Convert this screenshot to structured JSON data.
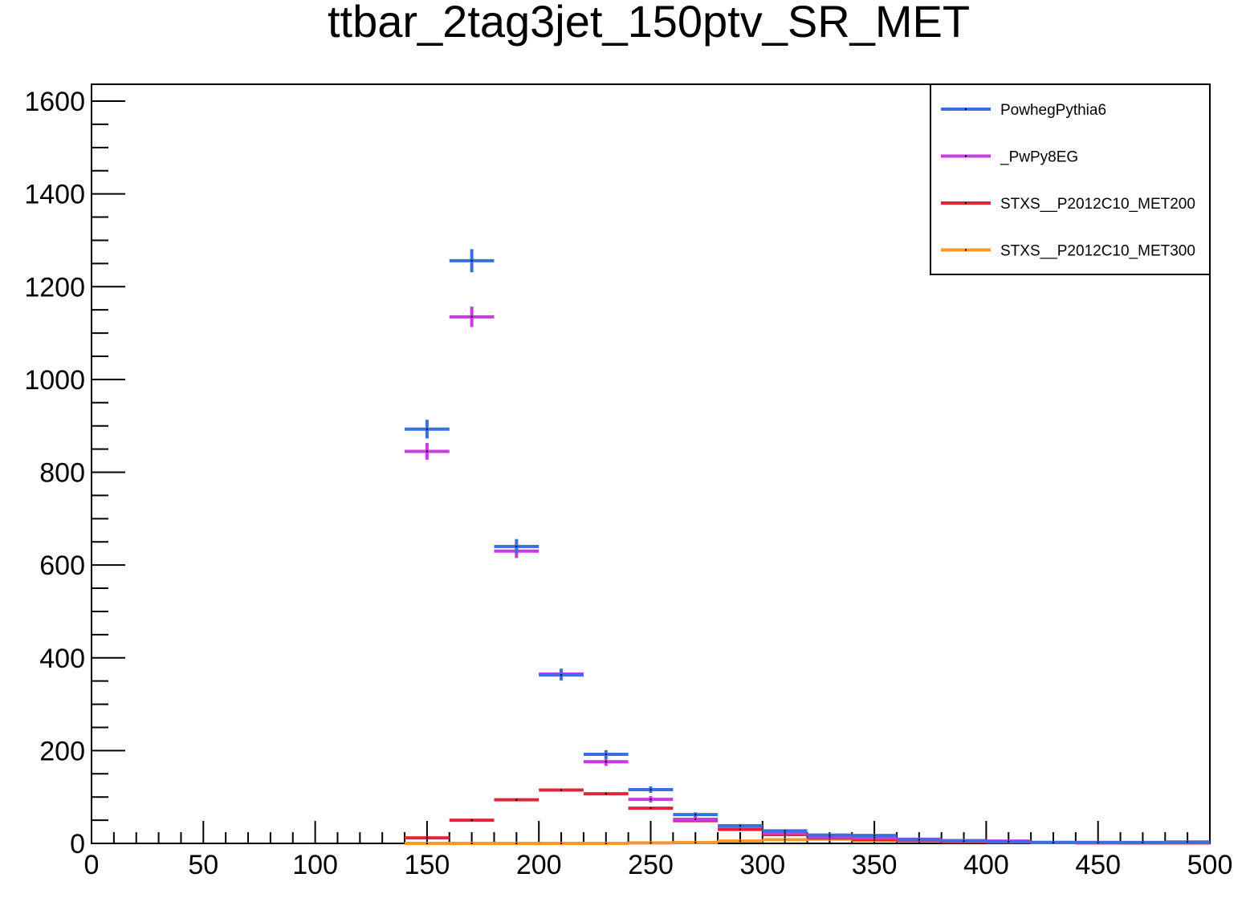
{
  "chart_data": {
    "type": "scatter",
    "title": "ttbar_2tag3jet_150ptv_SR_MET",
    "xlabel": "",
    "ylabel": "",
    "xlim": [
      0,
      500
    ],
    "ylim": [
      0,
      1650
    ],
    "x_ticks": [
      0,
      50,
      100,
      150,
      200,
      250,
      300,
      350,
      400,
      450,
      500
    ],
    "y_ticks": [
      0,
      200,
      400,
      600,
      800,
      1000,
      1200,
      1400,
      1600
    ],
    "grid": false,
    "legend_position": "top-right",
    "bin_width": 20,
    "series": [
      {
        "name": "PowhegPythia6",
        "color": "#3b6fe0",
        "points": [
          {
            "x": 150,
            "y": 893,
            "err": 20
          },
          {
            "x": 170,
            "y": 1256,
            "err": 25
          },
          {
            "x": 190,
            "y": 640,
            "err": 16
          },
          {
            "x": 210,
            "y": 363,
            "err": 12
          },
          {
            "x": 230,
            "y": 192,
            "err": 9
          },
          {
            "x": 250,
            "y": 116,
            "err": 7
          },
          {
            "x": 270,
            "y": 62,
            "err": 5
          },
          {
            "x": 290,
            "y": 38,
            "err": 4
          },
          {
            "x": 310,
            "y": 27,
            "err": 3
          },
          {
            "x": 330,
            "y": 18,
            "err": 3
          },
          {
            "x": 350,
            "y": 17,
            "err": 3
          },
          {
            "x": 370,
            "y": 8,
            "err": 2
          },
          {
            "x": 390,
            "y": 5,
            "err": 2
          },
          {
            "x": 410,
            "y": 4,
            "err": 1
          },
          {
            "x": 430,
            "y": 2,
            "err": 1
          },
          {
            "x": 450,
            "y": 2,
            "err": 1
          },
          {
            "x": 470,
            "y": 2,
            "err": 1
          },
          {
            "x": 490,
            "y": 3,
            "err": 1
          }
        ]
      },
      {
        "name": "_PwPy8EG",
        "color": "#c93be0",
        "points": [
          {
            "x": 150,
            "y": 845,
            "err": 18
          },
          {
            "x": 170,
            "y": 1135,
            "err": 22
          },
          {
            "x": 190,
            "y": 630,
            "err": 15
          },
          {
            "x": 210,
            "y": 365,
            "err": 12
          },
          {
            "x": 230,
            "y": 176,
            "err": 9
          },
          {
            "x": 250,
            "y": 95,
            "err": 7
          },
          {
            "x": 270,
            "y": 52,
            "err": 5
          },
          {
            "x": 290,
            "y": 37,
            "err": 4
          },
          {
            "x": 310,
            "y": 22,
            "err": 3
          },
          {
            "x": 330,
            "y": 14,
            "err": 2
          },
          {
            "x": 350,
            "y": 12,
            "err": 2
          },
          {
            "x": 370,
            "y": 9,
            "err": 2
          },
          {
            "x": 390,
            "y": 6,
            "err": 1
          },
          {
            "x": 410,
            "y": 5,
            "err": 1
          },
          {
            "x": 430,
            "y": 2,
            "err": 1
          },
          {
            "x": 450,
            "y": 2,
            "err": 1
          },
          {
            "x": 470,
            "y": 2,
            "err": 1
          },
          {
            "x": 490,
            "y": 2,
            "err": 1
          }
        ]
      },
      {
        "name": "STXS__P2012C10_MET200",
        "color": "#e8213c",
        "points": [
          {
            "x": 150,
            "y": 12,
            "err": 1
          },
          {
            "x": 170,
            "y": 50,
            "err": 2
          },
          {
            "x": 190,
            "y": 94,
            "err": 2
          },
          {
            "x": 210,
            "y": 115,
            "err": 2
          },
          {
            "x": 230,
            "y": 107,
            "err": 2
          },
          {
            "x": 250,
            "y": 76,
            "err": 2
          },
          {
            "x": 270,
            "y": 49,
            "err": 2
          },
          {
            "x": 290,
            "y": 30,
            "err": 1
          },
          {
            "x": 310,
            "y": 19,
            "err": 1
          },
          {
            "x": 330,
            "y": 12,
            "err": 1
          },
          {
            "x": 350,
            "y": 8,
            "err": 1
          },
          {
            "x": 370,
            "y": 6,
            "err": 1
          },
          {
            "x": 390,
            "y": 4,
            "err": 1
          },
          {
            "x": 410,
            "y": 3,
            "err": 1
          },
          {
            "x": 430,
            "y": 2,
            "err": 1
          },
          {
            "x": 450,
            "y": 1,
            "err": 1
          },
          {
            "x": 470,
            "y": 1,
            "err": 1
          },
          {
            "x": 490,
            "y": 1,
            "err": 1
          }
        ]
      },
      {
        "name": "STXS__P2012C10_MET300",
        "color": "#f39a2a",
        "points": [
          {
            "x": 150,
            "y": 0,
            "err": 0
          },
          {
            "x": 170,
            "y": 0,
            "err": 0
          },
          {
            "x": 190,
            "y": 0,
            "err": 0
          },
          {
            "x": 210,
            "y": 0,
            "err": 0
          },
          {
            "x": 230,
            "y": 0,
            "err": 0
          },
          {
            "x": 250,
            "y": 1,
            "err": 0
          },
          {
            "x": 270,
            "y": 2,
            "err": 0
          },
          {
            "x": 290,
            "y": 5,
            "err": 1
          },
          {
            "x": 310,
            "y": 8,
            "err": 1
          },
          {
            "x": 330,
            "y": 9,
            "err": 1
          },
          {
            "x": 350,
            "y": 7,
            "err": 1
          },
          {
            "x": 370,
            "y": 6,
            "err": 1
          },
          {
            "x": 390,
            "y": 4,
            "err": 1
          },
          {
            "x": 410,
            "y": 3,
            "err": 1
          },
          {
            "x": 430,
            "y": 2,
            "err": 1
          },
          {
            "x": 450,
            "y": 2,
            "err": 1
          },
          {
            "x": 470,
            "y": 1,
            "err": 1
          },
          {
            "x": 490,
            "y": 1,
            "err": 1
          }
        ]
      }
    ]
  }
}
